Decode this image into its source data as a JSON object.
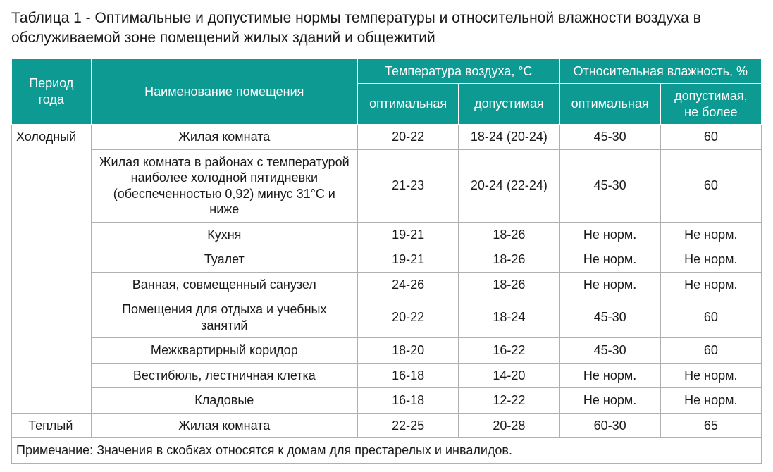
{
  "title": "Таблица 1 - Оптимальные и допустимые нормы температуры и относительной влажности воздуха в обслуживаемой зоне помещений жилых зданий и общежитий",
  "header": {
    "period": "Период года",
    "name": "Наименование помещения",
    "temp_group": "Температура воздуха, °С",
    "hum_group": "Относительная влажность, %",
    "opt": "оптимальная",
    "allow": "допустимая",
    "hum_opt": "оптимальная",
    "hum_allow": "допустимая, не более",
    "bg_color": "#0d9a92",
    "border_color": "#ffffff",
    "text_color": "#ffffff",
    "fontsize": 18
  },
  "periods": {
    "cold": "Холодный",
    "warm": "Теплый"
  },
  "rows": {
    "r0": {
      "name": "Жилая комната",
      "t_opt": "20-22",
      "t_all": "18-24 (20-24)",
      "h_opt": "45-30",
      "h_all": "60"
    },
    "r1": {
      "name": "Жилая комната в районах с температурой наиболее холодной пятидневки (обеспеченностью 0,92) минус 31°С и ниже",
      "t_opt": "21-23",
      "t_all": "20-24 (22-24)",
      "h_opt": "45-30",
      "h_all": "60"
    },
    "r2": {
      "name": "Кухня",
      "t_opt": "19-21",
      "t_all": "18-26",
      "h_opt": "Не норм.",
      "h_all": "Не норм."
    },
    "r3": {
      "name": "Туалет",
      "t_opt": "19-21",
      "t_all": "18-26",
      "h_opt": "Не норм.",
      "h_all": "Не норм."
    },
    "r4": {
      "name": "Ванная, совмещенный санузел",
      "t_opt": "24-26",
      "t_all": "18-26",
      "h_opt": "Не норм.",
      "h_all": "Не норм."
    },
    "r5": {
      "name": "Помещения для отдыха и учебных занятий",
      "t_opt": "20-22",
      "t_all": "18-24",
      "h_opt": "45-30",
      "h_all": "60"
    },
    "r6": {
      "name": "Межквартирный коридор",
      "t_opt": "18-20",
      "t_all": "16-22",
      "h_opt": "45-30",
      "h_all": "60"
    },
    "r7": {
      "name": "Вестибюль, лестничная клетка",
      "t_opt": "16-18",
      "t_all": "14-20",
      "h_opt": "Не норм.",
      "h_all": "Не норм."
    },
    "r8": {
      "name": "Кладовые",
      "t_opt": "16-18",
      "t_all": "12-22",
      "h_opt": "Не норм.",
      "h_all": "Не норм."
    },
    "r9": {
      "name": "Жилая комната",
      "t_opt": "22-25",
      "t_all": "20-28",
      "h_opt": "60-30",
      "h_all": "65"
    }
  },
  "footnote": "Примечание: Значения в скобках относятся к домам для престарелых и инвалидов.",
  "style": {
    "body_bg": "#ffffff",
    "cell_border": "#b0b0b0",
    "body_text_color": "#1a1a1a",
    "body_fontsize": 18
  }
}
